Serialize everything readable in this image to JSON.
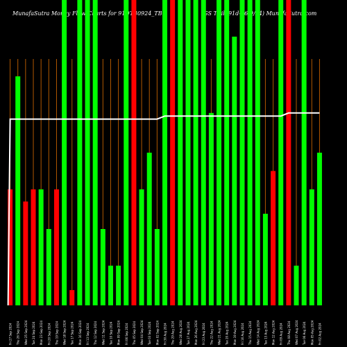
{
  "header": {
    "title_left": "MunafaSutra  Money Flow  Charts for 91DTB0924_TB",
    "title_right": "(GS TBill 91d-26/9/24) MunafaSutra.com"
  },
  "colors": {
    "background": "#000000",
    "up_bar": "#00ff00",
    "down_bar": "#ff0000",
    "grid_line": "#b35900",
    "line": "#ffffff",
    "tick_text": "#ffffff"
  },
  "chart_data": {
    "type": "bar",
    "title": "",
    "xlabel": "",
    "ylabel": "",
    "ylim": [
      0,
      100
    ],
    "grid": true,
    "categories": [
      "Fri 27 Sep 2024",
      "Thu 26 Sep 2024",
      "Wed 25 Sep 2024",
      "Tue 24 Sep 2024",
      "Mon 23 Sep 2024",
      "Fri 20 Sep 2024",
      "Thu 19 Sep 2024",
      "Wed 18 Sep 2024",
      "Tue 17 Sep 2024",
      "Mon 16 Sep 2024",
      "Fri 13 Sep 2024",
      "Thu 12 Sep 2024",
      "Wed 11 Sep 2024",
      "Tue 10 Sep 2024",
      "Mon 09 Sep 2024",
      "Fri 06 Sep 2024",
      "Thu 05 Sep 2024",
      "Wed 04 Sep 2024",
      "Tue 03 Sep 2024",
      "Mon 02 Sep 2024",
      "Fri 30 Aug 2024",
      "Thu 29 Aug 2024",
      "Wed 28 Aug 2024",
      "Tue 27 Aug 2024",
      "Mon 26 Aug 2024",
      "Fri 23 Aug 2024",
      "Thu 22 Aug 2024",
      "Wed 21 Aug 2024",
      "Tue 20 Aug 2024",
      "Mon 19 Aug 2024",
      "Fri 16 Aug 2024",
      "Thu 15 Aug 2024",
      "Wed 14 Aug 2024",
      "Tue 13 Aug 2024",
      "Mon 12 Aug 2024",
      "Fri 09 Aug 2024",
      "Thu 08 Aug 2024",
      "Wed 07 Aug 2024",
      "Tue 06 Aug 2024",
      "Mon 05 Aug 2024",
      "Fri 02 Aug 2024"
    ],
    "series": [
      {
        "values": [
          38,
          75,
          34,
          38,
          38,
          25,
          38,
          100,
          5,
          100,
          100,
          100,
          25,
          13,
          13,
          100,
          100,
          38,
          50,
          25,
          100,
          100,
          100,
          100,
          100,
          100,
          63,
          100,
          100,
          88,
          100,
          100,
          100,
          30,
          44,
          100,
          100,
          13,
          100,
          38,
          50
        ],
        "colors": [
          "red",
          "green",
          "red",
          "red",
          "green",
          "green",
          "red",
          "green",
          "red",
          "green",
          "green",
          "green",
          "green",
          "green",
          "green",
          "green",
          "red",
          "green",
          "green",
          "green",
          "green",
          "red",
          "green",
          "green",
          "green",
          "green",
          "green",
          "green",
          "green",
          "green",
          "green",
          "green",
          "green",
          "green",
          "red",
          "green",
          "red",
          "green",
          "green",
          "green",
          "green"
        ]
      },
      {
        "type": "line",
        "values": [
          61,
          61,
          61,
          61,
          61,
          61,
          61,
          61,
          61,
          61,
          61,
          61,
          61,
          61,
          61,
          61,
          61,
          61,
          61,
          61,
          62,
          62,
          62,
          62,
          62,
          62,
          62,
          62,
          62,
          62,
          62,
          62,
          62,
          62,
          62,
          62,
          63,
          63,
          63,
          63,
          63
        ]
      }
    ]
  }
}
